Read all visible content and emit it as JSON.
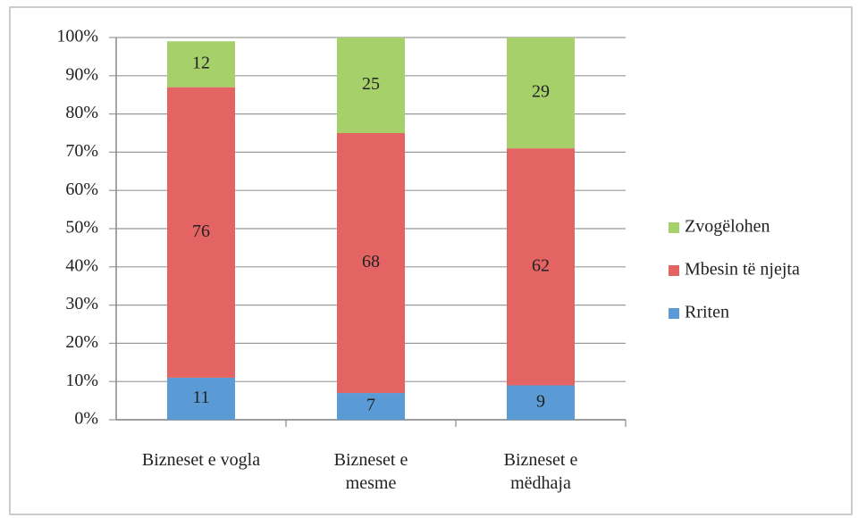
{
  "chart_data": {
    "type": "stacked_bar",
    "categories": [
      "Bizneset e vogla",
      "Bizneset e mesme",
      "Bizneset e mëdhaja"
    ],
    "series": [
      {
        "name": "Rriten",
        "color": "#5b9bd5",
        "values": [
          11,
          7,
          9
        ]
      },
      {
        "name": "Mbesin të njejta",
        "color": "#e46464",
        "values": [
          76,
          68,
          62
        ]
      },
      {
        "name": "Zvogëlohen",
        "color": "#a6d06a",
        "values": [
          12,
          25,
          29
        ]
      }
    ],
    "ylim": [
      0,
      100
    ],
    "yticks": [
      {
        "value": 0,
        "label": "0%"
      },
      {
        "value": 10,
        "label": "10%"
      },
      {
        "value": 20,
        "label": "20%"
      },
      {
        "value": 30,
        "label": "30%"
      },
      {
        "value": 40,
        "label": "40%"
      },
      {
        "value": 50,
        "label": "50%"
      },
      {
        "value": 60,
        "label": "60%"
      },
      {
        "value": 70,
        "label": "70%"
      },
      {
        "value": 80,
        "label": "80%"
      },
      {
        "value": 90,
        "label": "90%"
      },
      {
        "value": 100,
        "label": "100%"
      }
    ],
    "grid": true,
    "legend": "right"
  }
}
